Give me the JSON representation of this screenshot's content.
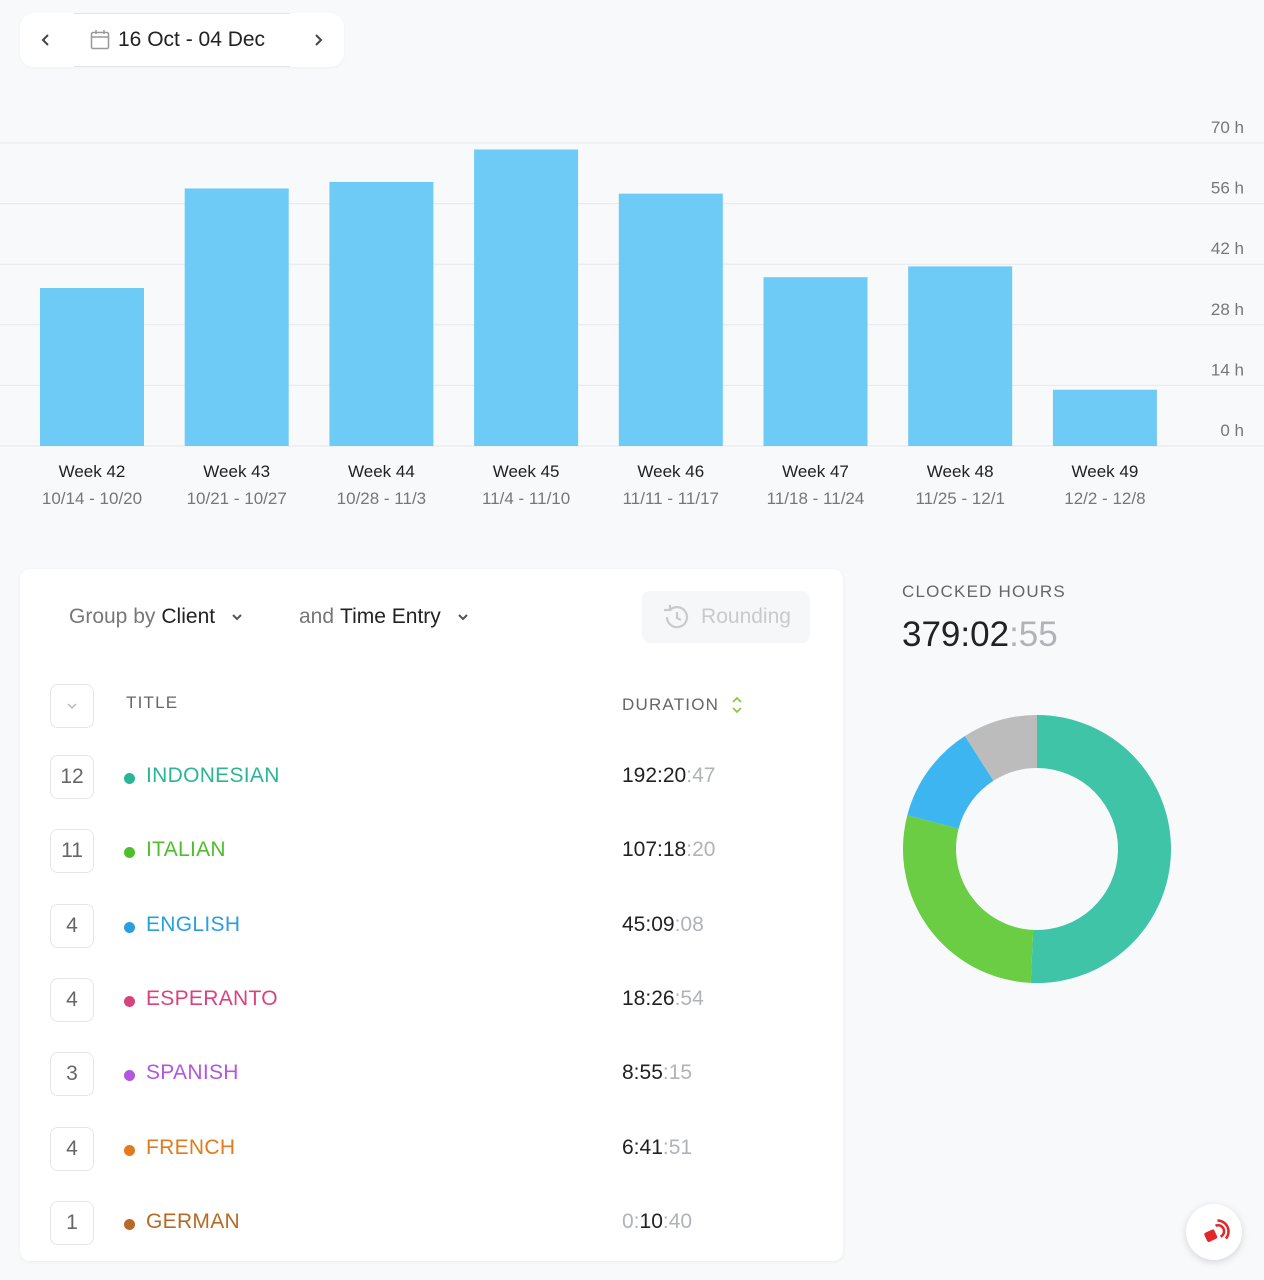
{
  "date_range": {
    "label": "16 Oct - 04 Dec"
  },
  "chart_data": {
    "type": "bar",
    "categories": [
      "Week 42",
      "Week 43",
      "Week 44",
      "Week 45",
      "Week 46",
      "Week 47",
      "Week 48",
      "Week 49"
    ],
    "subcategories": [
      "10/14 - 10/20",
      "10/21 - 10/27",
      "10/28 - 11/3",
      "11/4 - 11/10",
      "11/11 - 11/17",
      "11/18 - 11/24",
      "11/25 - 12/1",
      "12/2 - 12/8"
    ],
    "values": [
      36.5,
      59.5,
      61,
      68.5,
      58.3,
      39,
      41.5,
      13
    ],
    "y_ticks": [
      "70 h",
      "56 h",
      "42 h",
      "28 h",
      "14 h",
      "0 h"
    ],
    "ylim": [
      0,
      70
    ],
    "grid": true,
    "bar_color": "#6ecbf5"
  },
  "toolbar": {
    "group_prefix": "Group by",
    "group_value": "Client",
    "then_prefix": "and",
    "then_value": "Time Entry",
    "rounding_label": "Rounding"
  },
  "table": {
    "col_title": "TITLE",
    "col_duration": "DURATION",
    "rows": [
      {
        "count": "12",
        "name": "INDONESIAN",
        "color": "#2bb596",
        "dim": "",
        "main": "192:20",
        "sec": ":47"
      },
      {
        "count": "11",
        "name": "ITALIAN",
        "color": "#4fbe2c",
        "dim": "",
        "main": "107:18",
        "sec": ":20"
      },
      {
        "count": "4",
        "name": "ENGLISH",
        "color": "#2a9fe0",
        "dim": "",
        "main": "45:09",
        "sec": ":08"
      },
      {
        "count": "4",
        "name": "ESPERANTO",
        "color": "#d8437f",
        "dim": "",
        "main": "18:26",
        "sec": ":54"
      },
      {
        "count": "3",
        "name": "SPANISH",
        "color": "#b455e0",
        "dim": "",
        "main": "8:55",
        "sec": ":15"
      },
      {
        "count": "4",
        "name": "FRENCH",
        "color": "#e07b1f",
        "dim": "",
        "main": "6:41",
        "sec": ":51"
      },
      {
        "count": "1",
        "name": "GERMAN",
        "color": "#b76a26",
        "dim": "0:",
        "main": "10",
        "sec": ":40"
      }
    ]
  },
  "clocked": {
    "label": "CLOCKED HOURS",
    "main": "379:02",
    "sec": ":55"
  },
  "donut": {
    "slices": [
      {
        "label": "INDONESIAN",
        "value": 192.35,
        "color": "#40c4a8"
      },
      {
        "label": "ITALIAN",
        "value": 107.3,
        "color": "#6acd44"
      },
      {
        "label": "ENGLISH",
        "value": 45.15,
        "color": "#3db5f0"
      },
      {
        "label": "OTHER",
        "value": 34.25,
        "color": "#bcbcbc"
      }
    ]
  }
}
